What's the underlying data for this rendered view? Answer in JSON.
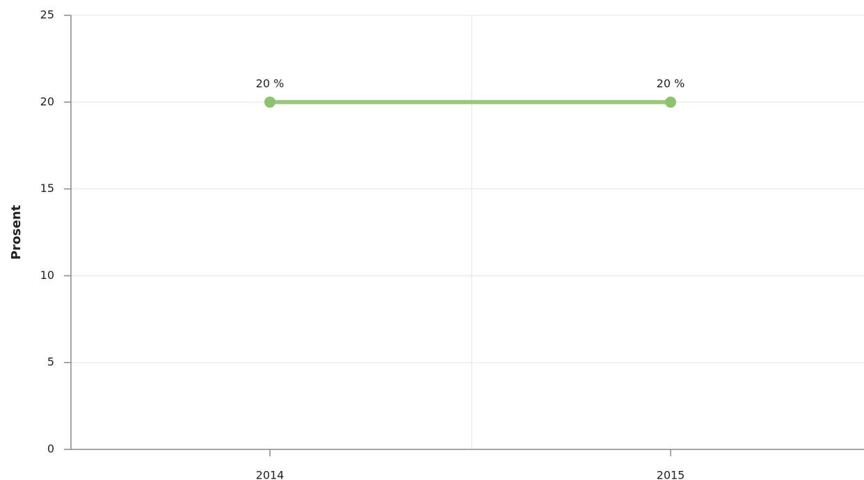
{
  "chart_data": {
    "type": "line",
    "y_label": "Prosent",
    "categories": [
      "2014",
      "2015"
    ],
    "series": [
      {
        "name": null,
        "color": "#8dc26f",
        "values": [
          20,
          20
        ],
        "value_labels": [
          "20 %",
          "20 %"
        ]
      }
    ],
    "ylim": [
      0,
      25
    ],
    "yticks": [
      0,
      5,
      10,
      15,
      20,
      25
    ],
    "grid": true
  }
}
